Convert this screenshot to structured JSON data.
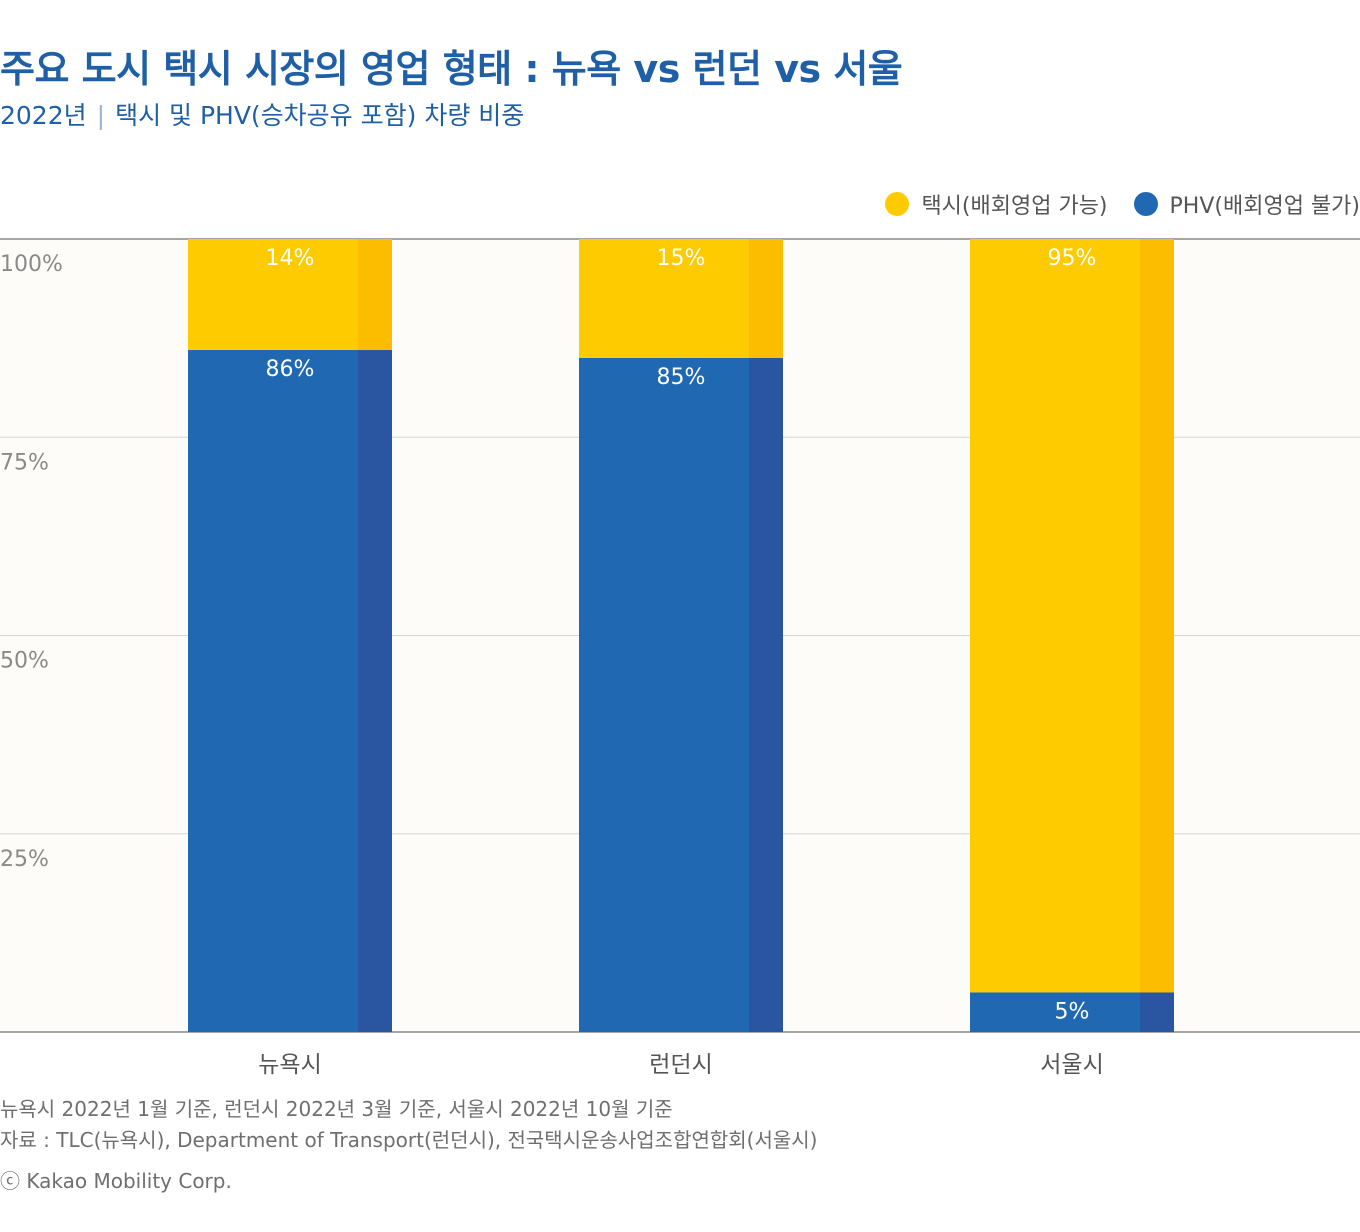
{
  "header": {
    "title": "주요 도시 택시 시장의 영업 형태 : 뉴욕 vs 런던 vs 서울",
    "subtitle_year": "2022년",
    "subtitle_separator": "|",
    "subtitle_desc": "택시 및 PHV(승차공유 포함) 차량 비중"
  },
  "colors": {
    "taxi": "#fecb00",
    "taxi_shade": "#fcbd00",
    "phv": "#2068b2",
    "phv_shade": "#2a55a1",
    "plot_bg": "#fdfcf8",
    "grid": "#d6d6d6",
    "axis": "#888888"
  },
  "chart_data": {
    "type": "bar",
    "stacked": true,
    "categories": [
      "뉴욕시",
      "런던시",
      "서울시"
    ],
    "series": [
      {
        "name": "PHV(배회영업 불가)",
        "values": [
          86,
          85,
          5
        ],
        "labels": [
          "86%",
          "85%",
          "5%"
        ]
      },
      {
        "name": "택시(배회영업 가능)",
        "values": [
          14,
          15,
          95
        ],
        "labels": [
          "14%",
          "15%",
          "95%"
        ]
      }
    ],
    "yticks": [
      25,
      50,
      75,
      100
    ],
    "ytick_labels": [
      "25%",
      "50%",
      "75%",
      "100%"
    ],
    "ylim": [
      0,
      100
    ],
    "legend_position": "top-right",
    "grid": true
  },
  "legend": [
    {
      "label": "택시(배회영업 가능)",
      "color": "#fecb00"
    },
    {
      "label": "PHV(배회영업 불가)",
      "color": "#2068b2"
    }
  ],
  "notes": {
    "line1": "뉴욕시 2022년 1월 기준, 런던시 2022년 3월 기준, 서울시 2022년 10월 기준",
    "line2": "자료 : TLC(뉴욕시), Department of Transport(런던시), 전국택시운송사업조합연합회(서울시)"
  },
  "copyright": "ⓒ Kakao Mobility Corp."
}
